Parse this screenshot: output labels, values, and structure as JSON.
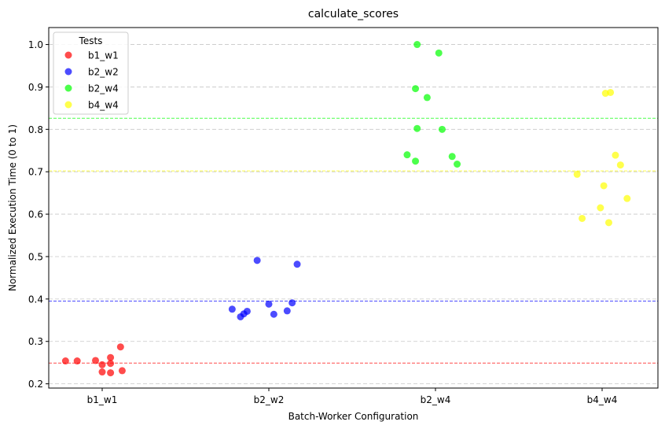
{
  "chart_data": {
    "type": "scatter",
    "title": "calculate_scores",
    "xlabel": "Batch-Worker Configuration",
    "ylabel": "Normalized Execution Time (0 to 1)",
    "categories": [
      "b1_w1",
      "b2_w2",
      "b2_w4",
      "b4_w4"
    ],
    "ylim": [
      0.19,
      1.04
    ],
    "yticks": [
      "0.2",
      "0.3",
      "0.4",
      "0.5",
      "0.6",
      "0.7",
      "0.8",
      "0.9",
      "1.0"
    ],
    "grid": "horizontal dashed",
    "legend": {
      "title": "Tests",
      "placement": "top-left"
    },
    "series": [
      {
        "name": "b1_w1",
        "color": "#ff0000",
        "mean": 0.249,
        "points": [
          [
            -0.22,
            0.254
          ],
          [
            -0.15,
            0.254
          ],
          [
            -0.04,
            0.255
          ],
          [
            0.0,
            0.245
          ],
          [
            0.0,
            0.228
          ],
          [
            0.05,
            0.262
          ],
          [
            0.05,
            0.248
          ],
          [
            0.05,
            0.226
          ],
          [
            0.11,
            0.287
          ],
          [
            0.12,
            0.231
          ]
        ]
      },
      {
        "name": "b2_w2",
        "color": "#0000ff",
        "mean": 0.395,
        "points": [
          [
            -0.22,
            0.376
          ],
          [
            -0.17,
            0.358
          ],
          [
            -0.15,
            0.365
          ],
          [
            -0.13,
            0.371
          ],
          [
            -0.07,
            0.491
          ],
          [
            0.0,
            0.388
          ],
          [
            0.03,
            0.364
          ],
          [
            0.11,
            0.372
          ],
          [
            0.14,
            0.391
          ],
          [
            0.17,
            0.482
          ]
        ]
      },
      {
        "name": "b2_w4",
        "color": "#00ff00",
        "mean": 0.826,
        "points": [
          [
            -0.17,
            0.74
          ],
          [
            -0.12,
            0.896
          ],
          [
            -0.12,
            0.725
          ],
          [
            -0.11,
            1.0
          ],
          [
            -0.11,
            0.802
          ],
          [
            -0.05,
            0.875
          ],
          [
            0.02,
            0.98
          ],
          [
            0.04,
            0.8
          ],
          [
            0.1,
            0.736
          ],
          [
            0.13,
            0.718
          ]
        ]
      },
      {
        "name": "b4_w4",
        "color": "#ffff00",
        "mean": 0.702,
        "points": [
          [
            -0.15,
            0.694
          ],
          [
            -0.12,
            0.59
          ],
          [
            -0.01,
            0.615
          ],
          [
            0.01,
            0.667
          ],
          [
            0.02,
            0.885
          ],
          [
            0.04,
            0.58
          ],
          [
            0.05,
            0.887
          ],
          [
            0.08,
            0.739
          ],
          [
            0.11,
            0.716
          ],
          [
            0.15,
            0.637
          ]
        ]
      }
    ]
  }
}
